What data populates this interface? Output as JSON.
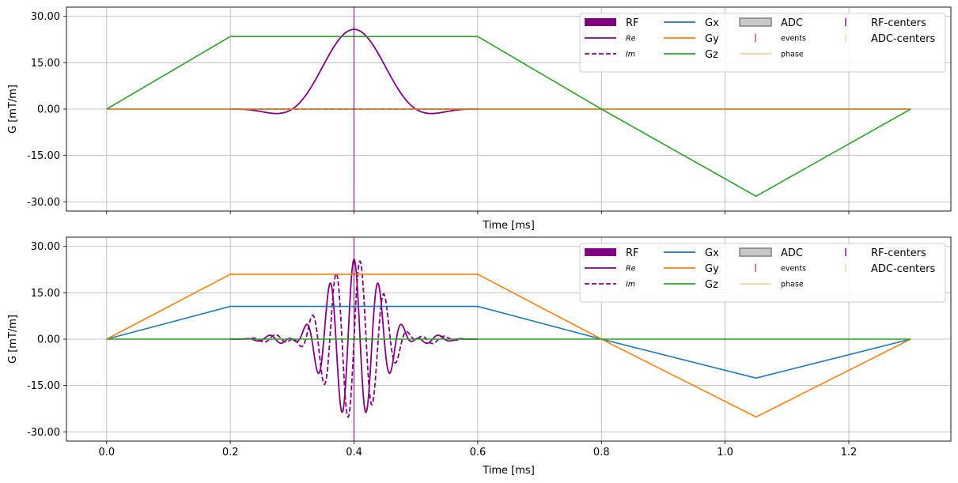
{
  "chart_data": [
    {
      "type": "line",
      "xlabel": "Time [ms]",
      "ylabel": "G [mT/m]",
      "xlim": [
        -0.065,
        1.365
      ],
      "ylim": [
        -33.0,
        33.0
      ],
      "xticks": [
        0.0,
        0.2,
        0.4,
        0.6,
        0.8,
        1.0,
        1.2
      ],
      "xtick_labels": [],
      "yticks": [
        30,
        15,
        0,
        -15,
        -30
      ],
      "ytick_labels": [
        "30.00",
        "15.00",
        "0.00",
        "-15.00",
        "-30.00"
      ],
      "grid": true,
      "rf_center": 0.4,
      "series": [
        {
          "name": "Gx",
          "color": "#1f77b4",
          "x": [
            0.0,
            1.3
          ],
          "y": [
            0,
            0
          ]
        },
        {
          "name": "Gy",
          "color": "#ff7f0e",
          "x": [
            0.0,
            1.3
          ],
          "y": [
            0,
            0
          ]
        },
        {
          "name": "Gz",
          "color": "#2ca02c",
          "x": [
            0.0,
            0.2,
            0.6,
            0.8,
            1.05,
            1.3
          ],
          "y": [
            0,
            23.5,
            23.5,
            0,
            -28.2,
            0
          ]
        }
      ],
      "rf": {
        "shape": "sinc",
        "t0": 0.2,
        "t1": 0.6,
        "amplitude": 25.8,
        "zero_spacing": 0.1,
        "freq_cycles_per_ms": 0
      },
      "legend": {
        "placement": "top-right",
        "entries": [
          {
            "label": "RF",
            "style": "patch",
            "color": "#800080"
          },
          {
            "label": "Re",
            "style": "line",
            "color": "#800080",
            "small": true
          },
          {
            "label": "Im",
            "style": "dashed",
            "color": "#800080",
            "small": true
          },
          {
            "label": "Gx",
            "style": "line",
            "color": "#1f77b4"
          },
          {
            "label": "Gy",
            "style": "line",
            "color": "#ff7f0e"
          },
          {
            "label": "Gz",
            "style": "line",
            "color": "#2ca02c"
          },
          {
            "label": "ADC",
            "style": "patch-outline",
            "color": "#c8c8c8"
          },
          {
            "label": "events",
            "style": "tick",
            "color": "#e8384f",
            "small": true
          },
          {
            "label": "phase",
            "style": "line",
            "color": "#e8d2a8",
            "small": true
          },
          {
            "label": "RF-centers",
            "style": "tick",
            "color": "#800080"
          },
          {
            "label": "ADC-centers",
            "style": "tick",
            "color": "#e8d2a8"
          }
        ]
      }
    },
    {
      "type": "line",
      "xlabel": "Time [ms]",
      "ylabel": "G [mT/m]",
      "xlim": [
        -0.065,
        1.365
      ],
      "ylim": [
        -33.0,
        33.0
      ],
      "xticks": [
        0.0,
        0.2,
        0.4,
        0.6,
        0.8,
        1.0,
        1.2
      ],
      "xtick_labels": [
        "0.0",
        "0.2",
        "0.4",
        "0.6",
        "0.8",
        "1.0",
        "1.2"
      ],
      "yticks": [
        30,
        15,
        0,
        -15,
        -30
      ],
      "ytick_labels": [
        "30.00",
        "15.00",
        "0.00",
        "-15.00",
        "-30.00"
      ],
      "grid": true,
      "rf_center": 0.4,
      "series": [
        {
          "name": "Gx",
          "color": "#1f77b4",
          "x": [
            0.0,
            0.2,
            0.6,
            0.8,
            1.05,
            1.3
          ],
          "y": [
            0,
            10.6,
            10.6,
            0,
            -12.6,
            0
          ]
        },
        {
          "name": "Gy",
          "color": "#ff7f0e",
          "x": [
            0.0,
            0.2,
            0.6,
            0.8,
            1.05,
            1.3
          ],
          "y": [
            0,
            21.0,
            21.0,
            0,
            -25.2,
            0
          ]
        },
        {
          "name": "Gz",
          "color": "#2ca02c",
          "x": [
            0.0,
            1.3
          ],
          "y": [
            0,
            0
          ]
        }
      ],
      "rf": {
        "shape": "sinc",
        "t0": 0.2,
        "t1": 0.6,
        "amplitude": 25.8,
        "zero_spacing": 0.1,
        "freq_cycles_per_ms": 25.6
      },
      "legend": {
        "placement": "top-right",
        "entries": [
          {
            "label": "RF",
            "style": "patch",
            "color": "#800080"
          },
          {
            "label": "Re",
            "style": "line",
            "color": "#800080",
            "small": true
          },
          {
            "label": "Im",
            "style": "dashed",
            "color": "#800080",
            "small": true
          },
          {
            "label": "Gx",
            "style": "line",
            "color": "#1f77b4"
          },
          {
            "label": "Gy",
            "style": "line",
            "color": "#ff7f0e"
          },
          {
            "label": "Gz",
            "style": "line",
            "color": "#2ca02c"
          },
          {
            "label": "ADC",
            "style": "patch-outline",
            "color": "#c8c8c8"
          },
          {
            "label": "events",
            "style": "tick",
            "color": "#e8384f",
            "small": true
          },
          {
            "label": "phase",
            "style": "line",
            "color": "#e8d2a8",
            "small": true
          },
          {
            "label": "RF-centers",
            "style": "tick",
            "color": "#800080"
          },
          {
            "label": "ADC-centers",
            "style": "tick",
            "color": "#e8d2a8"
          }
        ]
      }
    }
  ]
}
